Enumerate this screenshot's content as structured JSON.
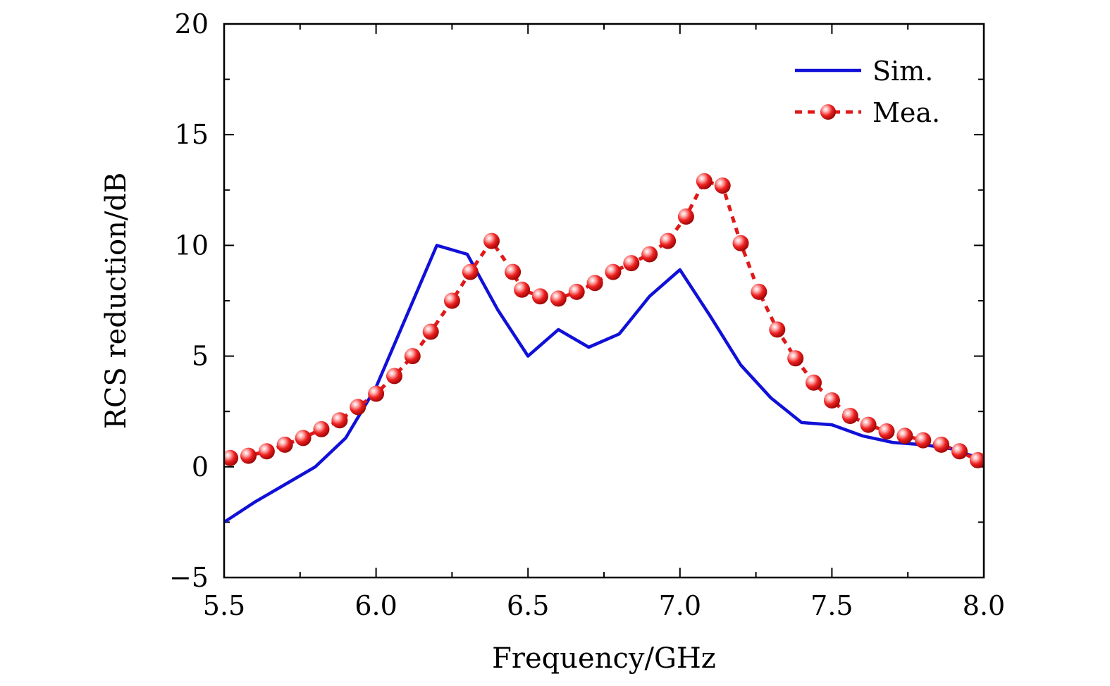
{
  "chart_data": {
    "type": "line",
    "title": "",
    "xlabel": "Frequency/GHz",
    "ylabel": "RCS reduction/dB",
    "xlim": [
      5.5,
      8.0
    ],
    "ylim": [
      -5,
      20
    ],
    "xticks": [
      5.5,
      6.0,
      6.5,
      7.0,
      7.5,
      8.0
    ],
    "xtick_labels": [
      "5.5",
      "6.0",
      "6.5",
      "7.0",
      "7.5",
      "8.0"
    ],
    "yticks": [
      -5,
      0,
      5,
      10,
      15,
      20
    ],
    "ytick_labels": [
      "−5",
      "0",
      "5",
      "10",
      "15",
      "20"
    ],
    "grid": false,
    "legend_position": "top-right",
    "series": [
      {
        "name": "Sim.",
        "color": "#1010d8",
        "style": "solid",
        "marker": "none",
        "x": [
          5.5,
          5.6,
          5.7,
          5.8,
          5.9,
          6.0,
          6.1,
          6.2,
          6.3,
          6.4,
          6.5,
          6.6,
          6.7,
          6.8,
          6.9,
          7.0,
          7.1,
          7.2,
          7.3,
          7.4,
          7.5,
          7.6,
          7.7,
          7.8,
          7.9,
          8.0
        ],
        "y": [
          -2.5,
          -1.6,
          -0.8,
          0.0,
          1.3,
          3.6,
          6.8,
          10.0,
          9.6,
          7.1,
          5.0,
          6.2,
          5.4,
          6.0,
          7.7,
          8.9,
          6.8,
          4.6,
          3.1,
          2.0,
          1.9,
          1.4,
          1.1,
          1.0,
          0.8,
          0.3
        ]
      },
      {
        "name": "Mea.",
        "color": "#e01818",
        "style": "dotted",
        "marker": "sphere",
        "x": [
          5.52,
          5.58,
          5.64,
          5.7,
          5.76,
          5.82,
          5.88,
          5.94,
          6.0,
          6.06,
          6.12,
          6.18,
          6.25,
          6.31,
          6.38,
          6.45,
          6.48,
          6.54,
          6.6,
          6.66,
          6.72,
          6.78,
          6.84,
          6.9,
          6.96,
          7.02,
          7.08,
          7.14,
          7.2,
          7.26,
          7.32,
          7.38,
          7.44,
          7.5,
          7.56,
          7.62,
          7.68,
          7.74,
          7.8,
          7.86,
          7.92,
          7.98
        ],
        "y": [
          0.4,
          0.5,
          0.7,
          1.0,
          1.3,
          1.7,
          2.1,
          2.7,
          3.3,
          4.1,
          5.0,
          6.1,
          7.5,
          8.8,
          10.2,
          8.8,
          8.0,
          7.7,
          7.6,
          7.9,
          8.3,
          8.8,
          9.2,
          9.6,
          10.2,
          11.3,
          12.9,
          12.7,
          10.1,
          7.9,
          6.2,
          4.9,
          3.8,
          3.0,
          2.3,
          1.9,
          1.6,
          1.4,
          1.2,
          1.0,
          0.7,
          0.3
        ]
      }
    ]
  }
}
